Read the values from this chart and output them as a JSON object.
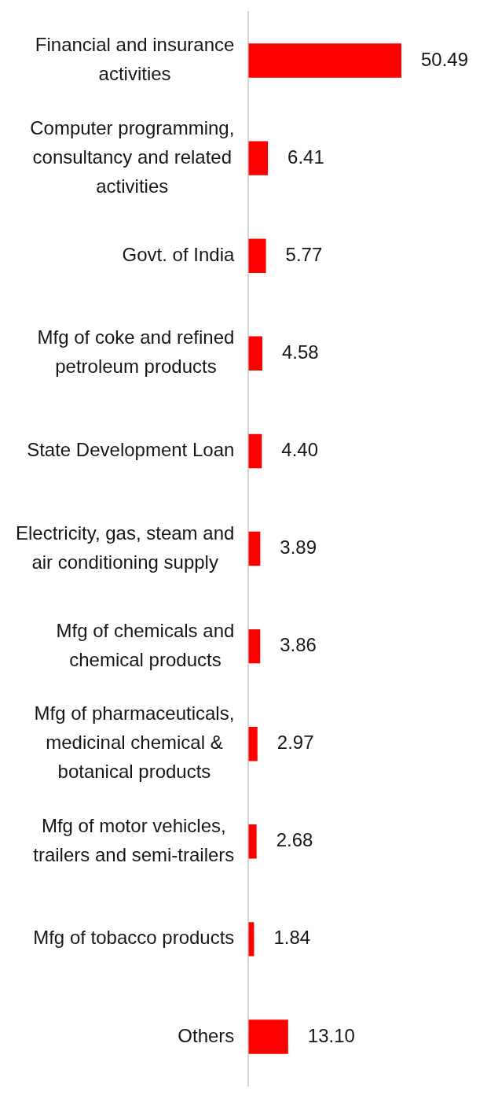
{
  "chart_data": {
    "type": "bar",
    "orientation": "horizontal",
    "categories": [
      "Financial and insurance activities",
      "Computer programming, consultancy and related activities",
      "Govt. of India",
      "Mfg of coke and refined petroleum products",
      "State Development Loan",
      "Electricity, gas, steam and air conditioning supply",
      "Mfg of chemicals and chemical products",
      "Mfg of pharmaceuticals, medicinal chemical & botanical products",
      "Mfg of motor vehicles, trailers and semi-trailers",
      "Mfg of tobacco products",
      "Others"
    ],
    "values": [
      50.49,
      6.41,
      5.77,
      4.58,
      4.4,
      3.89,
      3.86,
      2.97,
      2.68,
      1.84,
      13.1
    ],
    "value_labels": [
      "50.49",
      "6.41",
      "5.77",
      "4.58",
      "4.40",
      "3.89",
      "3.86",
      "2.97",
      "2.68",
      "1.84",
      "13.10"
    ],
    "color": "#ff0000",
    "tick_labels": "y"
  }
}
